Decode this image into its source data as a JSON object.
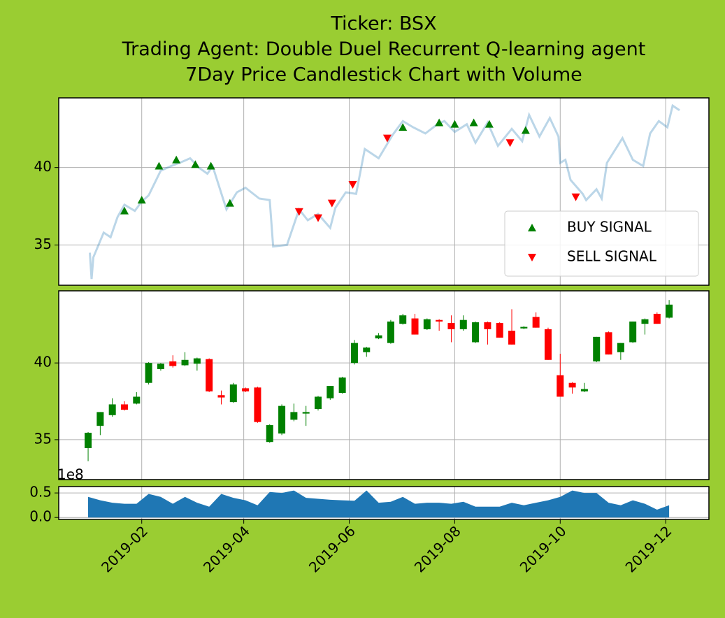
{
  "chart_data": [
    {
      "type": "line",
      "title": [
        "Ticker: BSX",
        "Trading Agent: Double Duel Recurrent Q-learning agent",
        "7Day Price Candlestick Chart with Volume"
      ],
      "x": [
        "2019-01-02",
        "2019-01-03",
        "2019-01-04",
        "2019-01-10",
        "2019-01-14",
        "2019-01-18",
        "2019-01-22",
        "2019-01-28",
        "2019-02-01",
        "2019-02-05",
        "2019-02-12",
        "2019-02-18",
        "2019-02-25",
        "2019-03-01",
        "2019-03-06",
        "2019-03-11",
        "2019-03-14",
        "2019-03-22",
        "2019-03-28",
        "2019-04-02",
        "2019-04-10",
        "2019-04-16",
        "2019-04-18",
        "2019-04-26",
        "2019-05-03",
        "2019-05-08",
        "2019-05-14",
        "2019-05-21",
        "2019-05-24",
        "2019-05-30",
        "2019-06-05",
        "2019-06-10",
        "2019-06-18",
        "2019-06-26",
        "2019-07-02",
        "2019-07-08",
        "2019-07-15",
        "2019-07-22",
        "2019-07-26",
        "2019-08-01",
        "2019-08-08",
        "2019-08-13",
        "2019-08-20",
        "2019-08-26",
        "2019-09-03",
        "2019-09-09",
        "2019-09-13",
        "2019-09-19",
        "2019-09-25",
        "2019-09-30",
        "2019-10-01",
        "2019-10-04",
        "2019-10-07",
        "2019-10-14",
        "2019-10-16",
        "2019-10-22",
        "2019-10-25",
        "2019-10-28",
        "2019-11-06",
        "2019-11-12",
        "2019-11-18",
        "2019-11-22",
        "2019-11-27",
        "2019-12-02",
        "2019-12-05",
        "2019-12-09"
      ],
      "values": [
        34.5,
        32.8,
        34.2,
        35.8,
        35.5,
        36.8,
        37.6,
        37.2,
        37.8,
        38.2,
        39.8,
        40.1,
        40.4,
        40.6,
        40.0,
        39.6,
        40.1,
        37.3,
        38.4,
        38.7,
        38.0,
        37.9,
        34.9,
        35.0,
        37.3,
        36.6,
        37.0,
        36.1,
        37.4,
        38.4,
        38.3,
        41.2,
        40.6,
        42.1,
        43.0,
        42.6,
        42.2,
        42.8,
        43.0,
        42.3,
        42.8,
        41.6,
        42.9,
        41.4,
        42.5,
        41.7,
        43.4,
        42.0,
        43.2,
        42.0,
        40.3,
        40.5,
        39.2,
        38.3,
        37.9,
        38.6,
        38.0,
        40.3,
        41.9,
        40.5,
        40.1,
        42.2,
        43.0,
        42.6,
        44.0,
        43.7
      ],
      "color": "#1f77b4",
      "alpha": 0.3,
      "series": [
        {
          "name": "BUY SIGNAL",
          "color": "green",
          "marker": "^",
          "x": [
            "2019-01-22",
            "2019-02-01",
            "2019-02-11",
            "2019-02-21",
            "2019-03-04",
            "2019-03-13",
            "2019-03-24",
            "2019-07-02",
            "2019-07-23",
            "2019-08-01",
            "2019-08-12",
            "2019-08-21",
            "2019-09-11"
          ],
          "values": [
            37.2,
            37.9,
            40.1,
            40.5,
            40.2,
            40.1,
            37.7,
            42.6,
            42.9,
            42.8,
            42.9,
            42.8,
            42.4
          ]
        },
        {
          "name": "SELL SIGNAL",
          "color": "red",
          "marker": "v",
          "x": [
            "2019-05-03",
            "2019-05-14",
            "2019-05-22",
            "2019-06-03",
            "2019-06-23",
            "2019-09-02",
            "2019-10-10"
          ],
          "values": [
            37.15,
            36.75,
            37.7,
            38.9,
            41.9,
            41.6,
            38.1
          ]
        }
      ],
      "ylim": [
        32.4,
        44.5
      ],
      "yticks": [
        35,
        40
      ],
      "grid": true,
      "legend": "lower right"
    },
    {
      "type": "candlestick",
      "x": [
        "2019-01-01",
        "2019-01-08",
        "2019-01-15",
        "2019-01-22",
        "2019-01-29",
        "2019-02-05",
        "2019-02-12",
        "2019-02-19",
        "2019-02-26",
        "2019-03-05",
        "2019-03-12",
        "2019-03-19",
        "2019-03-26",
        "2019-04-02",
        "2019-04-09",
        "2019-04-16",
        "2019-04-23",
        "2019-04-30",
        "2019-05-07",
        "2019-05-14",
        "2019-05-21",
        "2019-05-28",
        "2019-06-04",
        "2019-06-11",
        "2019-06-18",
        "2019-06-25",
        "2019-07-02",
        "2019-07-09",
        "2019-07-16",
        "2019-07-23",
        "2019-07-30",
        "2019-08-06",
        "2019-08-13",
        "2019-08-20",
        "2019-08-27",
        "2019-09-03",
        "2019-09-10",
        "2019-09-17",
        "2019-09-24",
        "2019-10-01",
        "2019-10-08",
        "2019-10-15",
        "2019-10-22",
        "2019-10-29",
        "2019-11-05",
        "2019-11-12",
        "2019-11-19",
        "2019-11-26",
        "2019-12-03"
      ],
      "open": [
        34.45,
        35.9,
        36.6,
        37.3,
        37.35,
        38.7,
        39.6,
        40.1,
        39.85,
        39.95,
        40.25,
        37.9,
        37.45,
        38.35,
        38.4,
        34.85,
        35.4,
        36.3,
        36.7,
        37.0,
        37.7,
        38.05,
        40.0,
        40.7,
        41.6,
        41.3,
        42.55,
        42.9,
        42.2,
        42.8,
        42.6,
        42.2,
        41.35,
        42.65,
        42.6,
        42.1,
        42.25,
        43.0,
        42.2,
        39.2,
        38.7,
        38.15,
        40.1,
        42.0,
        40.7,
        41.35,
        42.55,
        43.2,
        42.95
      ],
      "high": [
        35.5,
        36.8,
        37.7,
        37.5,
        38.1,
        40.05,
        40.0,
        40.5,
        40.7,
        40.35,
        40.3,
        38.2,
        38.7,
        38.4,
        38.45,
        36.0,
        37.3,
        37.35,
        37.2,
        37.85,
        38.5,
        39.1,
        41.5,
        41.05,
        41.95,
        42.8,
        43.2,
        43.2,
        42.9,
        42.85,
        43.1,
        43.1,
        42.7,
        42.7,
        42.65,
        43.5,
        42.4,
        43.3,
        42.3,
        40.6,
        38.75,
        38.7,
        41.7,
        42.05,
        41.3,
        42.7,
        42.9,
        43.3,
        44.1
      ],
      "low": [
        33.6,
        35.3,
        36.5,
        36.9,
        37.3,
        38.6,
        39.5,
        39.7,
        39.8,
        39.5,
        38.1,
        37.3,
        37.4,
        38.1,
        36.1,
        34.8,
        35.3,
        36.2,
        35.9,
        36.9,
        37.6,
        38.0,
        39.9,
        40.4,
        41.55,
        41.25,
        42.5,
        41.85,
        42.15,
        42.1,
        41.35,
        42.1,
        41.3,
        41.2,
        41.65,
        41.2,
        42.2,
        42.3,
        40.2,
        37.8,
        38.0,
        38.1,
        40.05,
        40.55,
        40.2,
        41.3,
        41.85,
        42.55,
        42.9
      ],
      "close": [
        35.45,
        36.8,
        37.3,
        36.95,
        37.8,
        40.0,
        39.95,
        39.8,
        40.2,
        40.3,
        38.15,
        37.75,
        38.6,
        38.15,
        36.15,
        35.95,
        37.2,
        36.8,
        36.8,
        37.8,
        38.5,
        39.05,
        41.3,
        41.0,
        41.8,
        42.7,
        43.1,
        41.85,
        42.85,
        42.7,
        42.2,
        42.8,
        42.65,
        42.2,
        41.65,
        41.2,
        42.35,
        42.3,
        40.2,
        37.8,
        38.4,
        38.3,
        41.7,
        40.55,
        41.3,
        42.7,
        42.85,
        42.55,
        43.8
      ],
      "up_color": "green",
      "down_color": "red",
      "ylim": [
        32.4,
        44.7
      ],
      "yticks": [
        35,
        40
      ],
      "grid": true
    },
    {
      "type": "area",
      "x": [
        "2019-01-01",
        "2019-01-08",
        "2019-01-15",
        "2019-01-22",
        "2019-01-29",
        "2019-02-05",
        "2019-02-12",
        "2019-02-19",
        "2019-02-26",
        "2019-03-05",
        "2019-03-12",
        "2019-03-19",
        "2019-03-26",
        "2019-04-02",
        "2019-04-09",
        "2019-04-16",
        "2019-04-23",
        "2019-04-30",
        "2019-05-07",
        "2019-05-14",
        "2019-05-21",
        "2019-05-28",
        "2019-06-04",
        "2019-06-11",
        "2019-06-18",
        "2019-06-25",
        "2019-07-02",
        "2019-07-09",
        "2019-07-16",
        "2019-07-23",
        "2019-07-30",
        "2019-08-06",
        "2019-08-13",
        "2019-08-20",
        "2019-08-27",
        "2019-09-03",
        "2019-09-10",
        "2019-09-17",
        "2019-09-24",
        "2019-10-01",
        "2019-10-08",
        "2019-10-15",
        "2019-10-22",
        "2019-10-29",
        "2019-11-05",
        "2019-11-12",
        "2019-11-19",
        "2019-11-26",
        "2019-12-03"
      ],
      "values": [
        0.42,
        0.35,
        0.3,
        0.28,
        0.28,
        0.48,
        0.42,
        0.28,
        0.42,
        0.3,
        0.22,
        0.48,
        0.4,
        0.35,
        0.25,
        0.52,
        0.5,
        0.55,
        0.4,
        0.38,
        0.36,
        0.35,
        0.34,
        0.55,
        0.3,
        0.32,
        0.42,
        0.28,
        0.3,
        0.3,
        0.28,
        0.32,
        0.22,
        0.22,
        0.22,
        0.3,
        0.25,
        0.3,
        0.35,
        0.42,
        0.55,
        0.5,
        0.5,
        0.3,
        0.25,
        0.35,
        0.28,
        0.16,
        0.25
      ],
      "color": "#1f77b4",
      "offset_label": "1e8",
      "ylim": [
        -0.04,
        0.63
      ],
      "yticks": [
        {
          "value": 0,
          "label": "0.0"
        },
        {
          "value": 0.5,
          "label": "0.5"
        }
      ],
      "xlim": [
        "2018-12-15",
        "2019-12-26"
      ],
      "xticks": [
        {
          "value": "2019-02-01",
          "label": "2019-02"
        },
        {
          "value": "2019-04-01",
          "label": "2019-04"
        },
        {
          "value": "2019-06-01",
          "label": "2019-06"
        },
        {
          "value": "2019-08-01",
          "label": "2019-08"
        },
        {
          "value": "2019-10-01",
          "label": "2019-10"
        },
        {
          "value": "2019-12-01",
          "label": "2019-12"
        }
      ],
      "grid": true
    }
  ]
}
